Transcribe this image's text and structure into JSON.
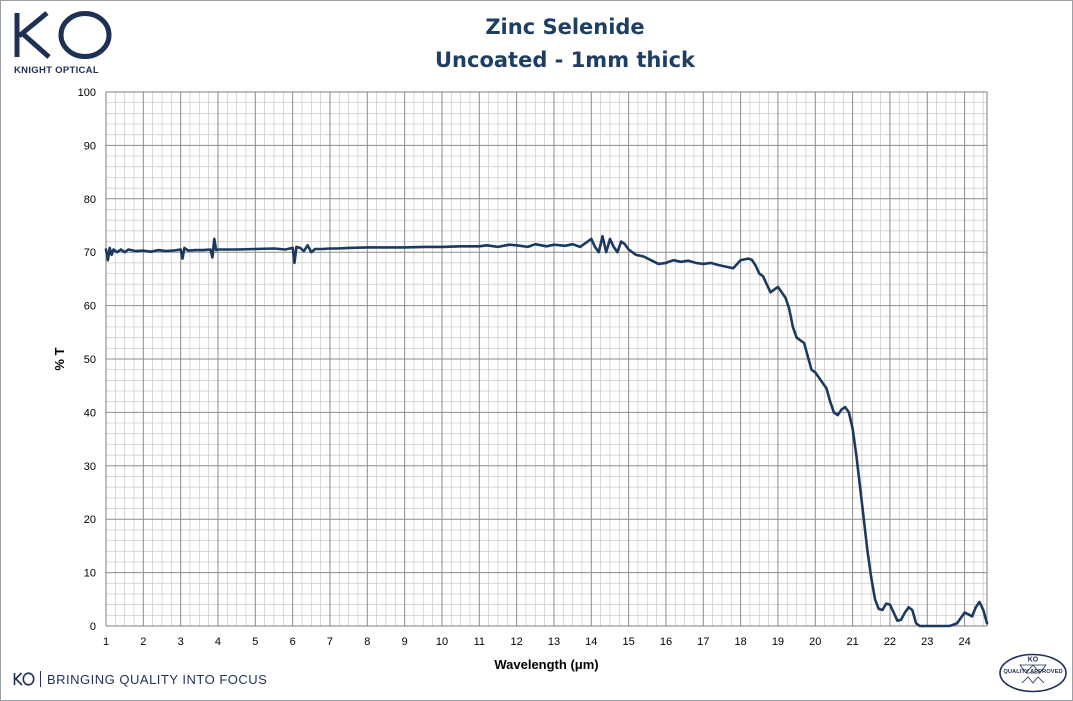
{
  "brand": {
    "logo_text": "KO",
    "name": "KNIGHT OPTICAL",
    "slogan": "BRINGING QUALITY INTO FOCUS",
    "badge_text": "QUALITY APPROVED",
    "color": "#1f3055"
  },
  "chart_data": {
    "type": "line",
    "title": "Zinc Selenide",
    "subtitle": "Uncoated - 1mm thick",
    "xlabel": "Wavelength (μm)",
    "ylabel": "% T",
    "xlim": [
      1,
      24.6
    ],
    "ylim": [
      0,
      100
    ],
    "xticks": [
      1,
      2,
      3,
      4,
      5,
      6,
      7,
      8,
      9,
      10,
      11,
      12,
      13,
      14,
      15,
      16,
      17,
      18,
      19,
      20,
      21,
      22,
      23,
      24
    ],
    "yticks": [
      0,
      10,
      20,
      30,
      40,
      50,
      60,
      70,
      80,
      90,
      100
    ],
    "grid": true,
    "legend": "none",
    "series": [
      {
        "color": "#1c3a5e",
        "x": [
          1.0,
          1.05,
          1.1,
          1.15,
          1.2,
          1.3,
          1.4,
          1.5,
          1.6,
          1.8,
          2.0,
          2.2,
          2.4,
          2.6,
          2.8,
          3.0,
          3.05,
          3.1,
          3.2,
          3.4,
          3.6,
          3.8,
          3.85,
          3.9,
          3.95,
          4.0,
          4.5,
          5.0,
          5.5,
          5.8,
          6.0,
          6.05,
          6.1,
          6.2,
          6.3,
          6.4,
          6.5,
          6.6,
          6.8,
          7.0,
          7.2,
          7.5,
          8.0,
          8.5,
          9.0,
          9.5,
          10.0,
          10.5,
          11.0,
          11.2,
          11.5,
          11.8,
          12.0,
          12.3,
          12.5,
          12.8,
          13.0,
          13.3,
          13.5,
          13.7,
          14.0,
          14.1,
          14.2,
          14.3,
          14.4,
          14.5,
          14.6,
          14.7,
          14.8,
          14.9,
          15.0,
          15.2,
          15.4,
          15.6,
          15.8,
          16.0,
          16.2,
          16.4,
          16.6,
          16.8,
          17.0,
          17.2,
          17.4,
          17.6,
          17.8,
          18.0,
          18.2,
          18.3,
          18.4,
          18.5,
          18.6,
          18.7,
          18.8,
          18.9,
          19.0,
          19.1,
          19.2,
          19.3,
          19.4,
          19.5,
          19.6,
          19.7,
          19.8,
          19.9,
          20.0,
          20.1,
          20.2,
          20.3,
          20.4,
          20.5,
          20.6,
          20.7,
          20.8,
          20.9,
          21.0,
          21.1,
          21.2,
          21.3,
          21.4,
          21.5,
          21.6,
          21.7,
          21.8,
          21.9,
          22.0,
          22.1,
          22.2,
          22.3,
          22.4,
          22.5,
          22.6,
          22.7,
          22.8,
          22.9,
          23.0,
          23.2,
          23.4,
          23.6,
          23.8,
          24.0,
          24.1,
          24.2,
          24.3,
          24.4,
          24.5,
          24.6
        ],
        "y": [
          70.5,
          68.5,
          70.8,
          69.5,
          70.5,
          70.0,
          70.5,
          70.0,
          70.5,
          70.2,
          70.3,
          70.1,
          70.4,
          70.2,
          70.3,
          70.5,
          68.8,
          70.8,
          70.3,
          70.4,
          70.4,
          70.5,
          69.0,
          72.5,
          70.4,
          70.5,
          70.5,
          70.6,
          70.7,
          70.5,
          70.8,
          68.0,
          71.0,
          70.8,
          70.2,
          71.3,
          70.0,
          70.6,
          70.6,
          70.7,
          70.7,
          70.8,
          70.9,
          70.9,
          70.9,
          71.0,
          71.0,
          71.1,
          71.1,
          71.3,
          71.0,
          71.4,
          71.3,
          71.0,
          71.5,
          71.1,
          71.4,
          71.2,
          71.5,
          71.0,
          72.5,
          71.0,
          70.0,
          73.0,
          70.0,
          72.5,
          71.0,
          70.0,
          72.0,
          71.5,
          70.5,
          69.5,
          69.2,
          68.5,
          67.8,
          68.0,
          68.5,
          68.2,
          68.4,
          68.0,
          67.8,
          68.0,
          67.6,
          67.3,
          67.0,
          68.5,
          68.8,
          68.6,
          67.5,
          66.0,
          65.5,
          64.0,
          62.5,
          63.0,
          63.5,
          62.5,
          61.5,
          59.5,
          56.0,
          54.0,
          53.5,
          53.0,
          50.5,
          48.0,
          47.5,
          46.5,
          45.5,
          44.5,
          42.0,
          40.0,
          39.5,
          40.5,
          41.0,
          40.0,
          37.0,
          32.0,
          26.0,
          20.0,
          14.0,
          9.0,
          5.0,
          3.2,
          3.0,
          4.2,
          4.0,
          2.5,
          1.0,
          1.2,
          2.5,
          3.5,
          3.0,
          0.5,
          0.0,
          0.0,
          0.0,
          0.0,
          0.0,
          0.0,
          0.5,
          2.5,
          2.2,
          1.8,
          3.5,
          4.5,
          3.0,
          0.5
        ]
      }
    ]
  }
}
